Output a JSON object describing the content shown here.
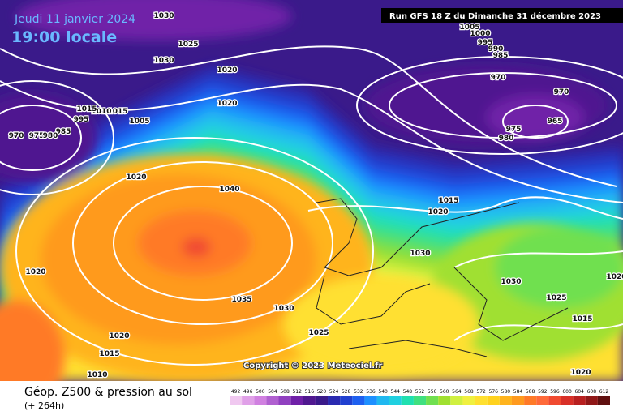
{
  "header": {
    "date": "Jeudi 11 janvier 2024",
    "time": "19:00 locale",
    "run": "Run GFS 18 Z du Dimanche 31 décembre 2023"
  },
  "copyright": "Copyright © 2023 Meteociel.fr",
  "legend": {
    "title": "Géop. Z500 & pression au sol",
    "lead": "(+ 264h)",
    "levels": [
      492,
      496,
      500,
      504,
      508,
      512,
      516,
      520,
      524,
      528,
      532,
      536,
      540,
      544,
      548,
      552,
      556,
      560,
      564,
      568,
      572,
      576,
      580,
      584,
      588,
      592,
      596,
      600,
      604,
      608,
      612
    ],
    "colors": [
      "#f0c8f0",
      "#e0a0e8",
      "#d080e0",
      "#b060d0",
      "#9040c0",
      "#7020a8",
      "#501890",
      "#3a1a8a",
      "#2a2ab0",
      "#2040d0",
      "#1e60f0",
      "#1e90ff",
      "#20b8f0",
      "#20d0e0",
      "#20e0b0",
      "#40e080",
      "#70e050",
      "#a0e030",
      "#d0f040",
      "#f0f040",
      "#ffe030",
      "#ffd21e",
      "#ffb41e",
      "#ff9a1e",
      "#ff7a28",
      "#ff6a3a",
      "#f04a30",
      "#d83028",
      "#b82020",
      "#901818",
      "#601010"
    ]
  },
  "isobars": [
    1030,
    1025,
    1030,
    1020,
    1020,
    1015,
    1010,
    1015,
    1005,
    995,
    985,
    970,
    975,
    980,
    1020,
    1040,
    1035,
    1030,
    1025,
    1020,
    1015,
    1010,
    1020,
    1030,
    1015,
    1020,
    1005,
    1000,
    995,
    990,
    985,
    970,
    970,
    975,
    980,
    965,
    1030,
    1025,
    1015,
    1020,
    1020
  ]
}
